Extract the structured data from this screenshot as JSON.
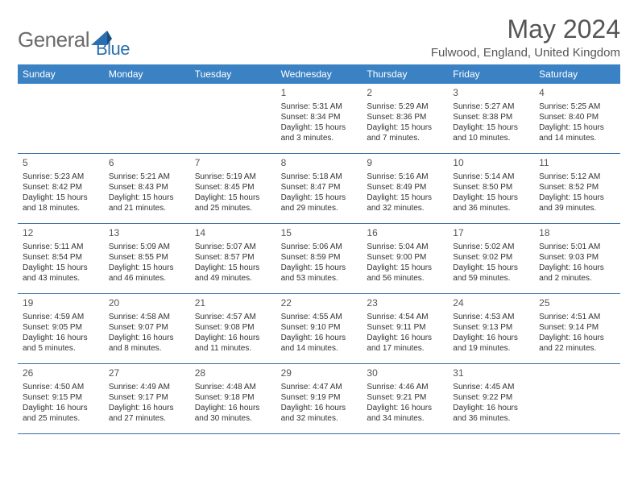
{
  "logo": {
    "word1": "General",
    "word2": "Blue"
  },
  "title": "May 2024",
  "location": "Fulwood, England, United Kingdom",
  "colors": {
    "header_bg": "#3b82c4",
    "header_text": "#ffffff",
    "border": "#3b6ea5",
    "logo_gray": "#6b6b6b",
    "logo_blue": "#2a6fb0",
    "title_color": "#555555"
  },
  "day_names": [
    "Sunday",
    "Monday",
    "Tuesday",
    "Wednesday",
    "Thursday",
    "Friday",
    "Saturday"
  ],
  "weeks": [
    [
      null,
      null,
      null,
      {
        "n": "1",
        "sr": "Sunrise: 5:31 AM",
        "ss": "Sunset: 8:34 PM",
        "dl1": "Daylight: 15 hours",
        "dl2": "and 3 minutes."
      },
      {
        "n": "2",
        "sr": "Sunrise: 5:29 AM",
        "ss": "Sunset: 8:36 PM",
        "dl1": "Daylight: 15 hours",
        "dl2": "and 7 minutes."
      },
      {
        "n": "3",
        "sr": "Sunrise: 5:27 AM",
        "ss": "Sunset: 8:38 PM",
        "dl1": "Daylight: 15 hours",
        "dl2": "and 10 minutes."
      },
      {
        "n": "4",
        "sr": "Sunrise: 5:25 AM",
        "ss": "Sunset: 8:40 PM",
        "dl1": "Daylight: 15 hours",
        "dl2": "and 14 minutes."
      }
    ],
    [
      {
        "n": "5",
        "sr": "Sunrise: 5:23 AM",
        "ss": "Sunset: 8:42 PM",
        "dl1": "Daylight: 15 hours",
        "dl2": "and 18 minutes."
      },
      {
        "n": "6",
        "sr": "Sunrise: 5:21 AM",
        "ss": "Sunset: 8:43 PM",
        "dl1": "Daylight: 15 hours",
        "dl2": "and 21 minutes."
      },
      {
        "n": "7",
        "sr": "Sunrise: 5:19 AM",
        "ss": "Sunset: 8:45 PM",
        "dl1": "Daylight: 15 hours",
        "dl2": "and 25 minutes."
      },
      {
        "n": "8",
        "sr": "Sunrise: 5:18 AM",
        "ss": "Sunset: 8:47 PM",
        "dl1": "Daylight: 15 hours",
        "dl2": "and 29 minutes."
      },
      {
        "n": "9",
        "sr": "Sunrise: 5:16 AM",
        "ss": "Sunset: 8:49 PM",
        "dl1": "Daylight: 15 hours",
        "dl2": "and 32 minutes."
      },
      {
        "n": "10",
        "sr": "Sunrise: 5:14 AM",
        "ss": "Sunset: 8:50 PM",
        "dl1": "Daylight: 15 hours",
        "dl2": "and 36 minutes."
      },
      {
        "n": "11",
        "sr": "Sunrise: 5:12 AM",
        "ss": "Sunset: 8:52 PM",
        "dl1": "Daylight: 15 hours",
        "dl2": "and 39 minutes."
      }
    ],
    [
      {
        "n": "12",
        "sr": "Sunrise: 5:11 AM",
        "ss": "Sunset: 8:54 PM",
        "dl1": "Daylight: 15 hours",
        "dl2": "and 43 minutes."
      },
      {
        "n": "13",
        "sr": "Sunrise: 5:09 AM",
        "ss": "Sunset: 8:55 PM",
        "dl1": "Daylight: 15 hours",
        "dl2": "and 46 minutes."
      },
      {
        "n": "14",
        "sr": "Sunrise: 5:07 AM",
        "ss": "Sunset: 8:57 PM",
        "dl1": "Daylight: 15 hours",
        "dl2": "and 49 minutes."
      },
      {
        "n": "15",
        "sr": "Sunrise: 5:06 AM",
        "ss": "Sunset: 8:59 PM",
        "dl1": "Daylight: 15 hours",
        "dl2": "and 53 minutes."
      },
      {
        "n": "16",
        "sr": "Sunrise: 5:04 AM",
        "ss": "Sunset: 9:00 PM",
        "dl1": "Daylight: 15 hours",
        "dl2": "and 56 minutes."
      },
      {
        "n": "17",
        "sr": "Sunrise: 5:02 AM",
        "ss": "Sunset: 9:02 PM",
        "dl1": "Daylight: 15 hours",
        "dl2": "and 59 minutes."
      },
      {
        "n": "18",
        "sr": "Sunrise: 5:01 AM",
        "ss": "Sunset: 9:03 PM",
        "dl1": "Daylight: 16 hours",
        "dl2": "and 2 minutes."
      }
    ],
    [
      {
        "n": "19",
        "sr": "Sunrise: 4:59 AM",
        "ss": "Sunset: 9:05 PM",
        "dl1": "Daylight: 16 hours",
        "dl2": "and 5 minutes."
      },
      {
        "n": "20",
        "sr": "Sunrise: 4:58 AM",
        "ss": "Sunset: 9:07 PM",
        "dl1": "Daylight: 16 hours",
        "dl2": "and 8 minutes."
      },
      {
        "n": "21",
        "sr": "Sunrise: 4:57 AM",
        "ss": "Sunset: 9:08 PM",
        "dl1": "Daylight: 16 hours",
        "dl2": "and 11 minutes."
      },
      {
        "n": "22",
        "sr": "Sunrise: 4:55 AM",
        "ss": "Sunset: 9:10 PM",
        "dl1": "Daylight: 16 hours",
        "dl2": "and 14 minutes."
      },
      {
        "n": "23",
        "sr": "Sunrise: 4:54 AM",
        "ss": "Sunset: 9:11 PM",
        "dl1": "Daylight: 16 hours",
        "dl2": "and 17 minutes."
      },
      {
        "n": "24",
        "sr": "Sunrise: 4:53 AM",
        "ss": "Sunset: 9:13 PM",
        "dl1": "Daylight: 16 hours",
        "dl2": "and 19 minutes."
      },
      {
        "n": "25",
        "sr": "Sunrise: 4:51 AM",
        "ss": "Sunset: 9:14 PM",
        "dl1": "Daylight: 16 hours",
        "dl2": "and 22 minutes."
      }
    ],
    [
      {
        "n": "26",
        "sr": "Sunrise: 4:50 AM",
        "ss": "Sunset: 9:15 PM",
        "dl1": "Daylight: 16 hours",
        "dl2": "and 25 minutes."
      },
      {
        "n": "27",
        "sr": "Sunrise: 4:49 AM",
        "ss": "Sunset: 9:17 PM",
        "dl1": "Daylight: 16 hours",
        "dl2": "and 27 minutes."
      },
      {
        "n": "28",
        "sr": "Sunrise: 4:48 AM",
        "ss": "Sunset: 9:18 PM",
        "dl1": "Daylight: 16 hours",
        "dl2": "and 30 minutes."
      },
      {
        "n": "29",
        "sr": "Sunrise: 4:47 AM",
        "ss": "Sunset: 9:19 PM",
        "dl1": "Daylight: 16 hours",
        "dl2": "and 32 minutes."
      },
      {
        "n": "30",
        "sr": "Sunrise: 4:46 AM",
        "ss": "Sunset: 9:21 PM",
        "dl1": "Daylight: 16 hours",
        "dl2": "and 34 minutes."
      },
      {
        "n": "31",
        "sr": "Sunrise: 4:45 AM",
        "ss": "Sunset: 9:22 PM",
        "dl1": "Daylight: 16 hours",
        "dl2": "and 36 minutes."
      },
      null
    ]
  ]
}
